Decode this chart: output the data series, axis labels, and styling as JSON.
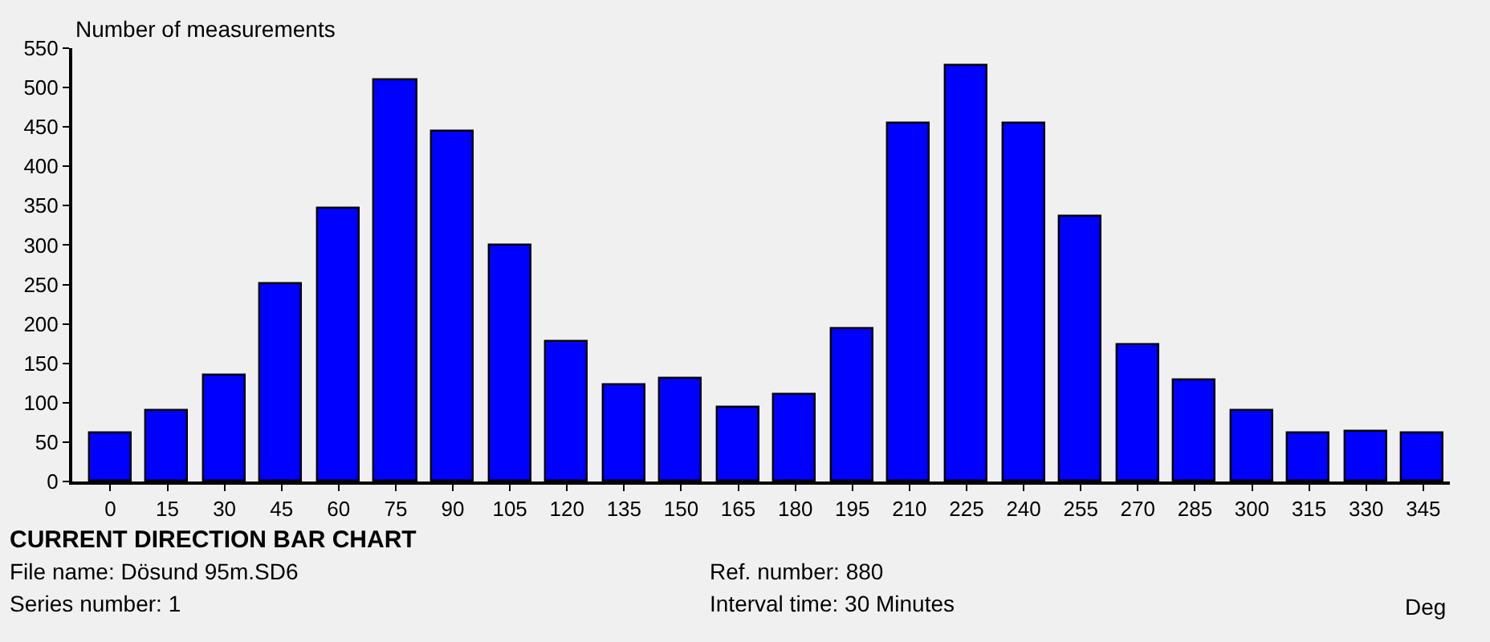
{
  "chart_data": {
    "type": "bar",
    "title": "CURRENT DIRECTION BAR CHART",
    "ylabel": "Number of measurements",
    "xlabel": "Deg",
    "annotations": [
      "File name: Dösund 95m.SD6",
      "Series number: 1",
      "Ref. number: 880",
      "Interval time: 30 Minutes"
    ],
    "x": [
      0,
      15,
      30,
      45,
      60,
      75,
      90,
      105,
      120,
      135,
      150,
      165,
      180,
      195,
      210,
      225,
      240,
      255,
      270,
      285,
      300,
      315,
      330,
      345
    ],
    "values": [
      62,
      89,
      134,
      251,
      347,
      510,
      444,
      300,
      178,
      122,
      131,
      93,
      109,
      193,
      455,
      527,
      455,
      337,
      173,
      129,
      89,
      62,
      64,
      62
    ],
    "color": "#0000ff",
    "xlim": [
      -10,
      352
    ],
    "xticks": [
      0,
      15,
      30,
      45,
      60,
      75,
      90,
      105,
      120,
      135,
      150,
      165,
      180,
      195,
      210,
      225,
      240,
      255,
      270,
      285,
      300,
      315,
      330,
      345
    ],
    "ylim": [
      0,
      550
    ],
    "yticks": [
      0,
      50,
      100,
      150,
      200,
      250,
      300,
      350,
      400,
      450,
      500,
      550
    ],
    "grid": false
  }
}
